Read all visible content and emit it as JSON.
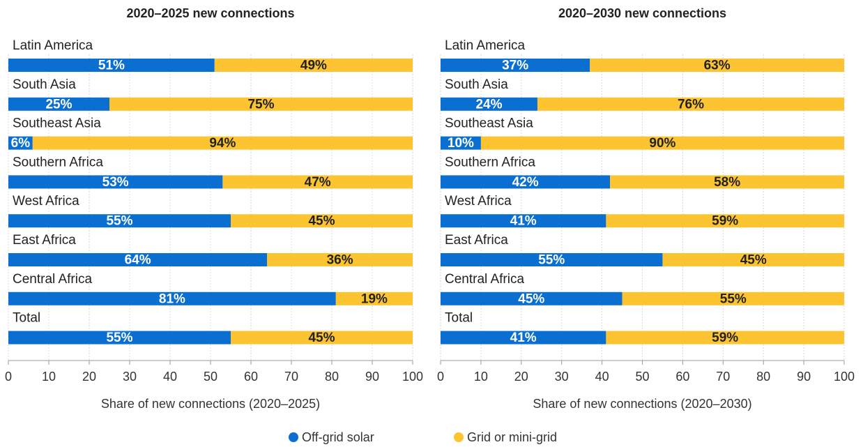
{
  "chart_data": [
    {
      "type": "stacked-bar-horizontal",
      "title": "2020–2025 new connections",
      "x_label": "Share of new connections (2020–2025)",
      "categories": [
        "Latin America",
        "South Asia",
        "Southeast Asia",
        "Southern Africa",
        "West Africa",
        "East Africa",
        "Central Africa",
        "Total"
      ],
      "series": [
        {
          "name": "Off-grid solar",
          "color": "#0a6fd1",
          "values": [
            51,
            25,
            6,
            53,
            55,
            64,
            81,
            55
          ],
          "value_labels": [
            "51%",
            "25%",
            "6%",
            "53%",
            "55%",
            "64%",
            "81%",
            "55%"
          ]
        },
        {
          "name": "Grid or mini-grid",
          "color": "#fdc432",
          "values": [
            49,
            75,
            94,
            47,
            45,
            36,
            19,
            45
          ],
          "value_labels": [
            "49%",
            "75%",
            "94%",
            "47%",
            "45%",
            "36%",
            "19%",
            "45%"
          ]
        }
      ],
      "xlim": [
        0,
        100
      ],
      "xticks": [
        0,
        10,
        20,
        30,
        40,
        50,
        60,
        70,
        80,
        90,
        100
      ],
      "grid": true
    },
    {
      "type": "stacked-bar-horizontal",
      "title": "2020–2030 new connections",
      "x_label": "Share of new connections (2020–2030)",
      "categories": [
        "Latin America",
        "South Asia",
        "Southeast Asia",
        "Southern Africa",
        "West Africa",
        "East Africa",
        "Central Africa",
        "Total"
      ],
      "series": [
        {
          "name": "Off-grid solar",
          "color": "#0a6fd1",
          "values": [
            37,
            24,
            10,
            42,
            41,
            55,
            45,
            41
          ],
          "value_labels": [
            "37%",
            "24%",
            "10%",
            "42%",
            "41%",
            "55%",
            "45%",
            "41%"
          ]
        },
        {
          "name": "Grid or mini-grid",
          "color": "#fdc432",
          "values": [
            63,
            76,
            90,
            58,
            59,
            45,
            55,
            59
          ],
          "value_labels": [
            "63%",
            "76%",
            "90%",
            "58%",
            "59%",
            "45%",
            "55%",
            "59%"
          ]
        }
      ],
      "xlim": [
        0,
        100
      ],
      "xticks": [
        0,
        10,
        20,
        30,
        40,
        50,
        60,
        70,
        80,
        90,
        100
      ],
      "grid": true
    }
  ]
}
